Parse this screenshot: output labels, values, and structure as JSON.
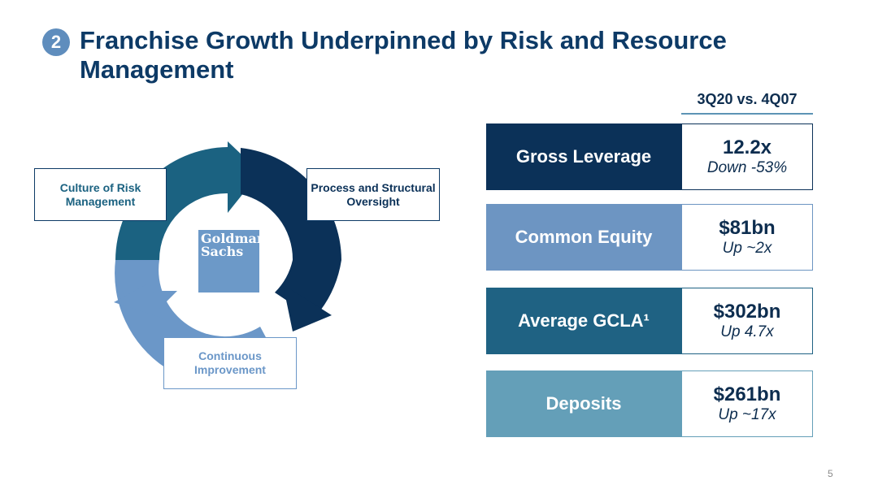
{
  "slide": {
    "badge_number": "2",
    "title": "Franchise Growth Underpinned by Risk and Resource Management",
    "comparison_label": "3Q20 vs. 4Q07",
    "page_number": "5"
  },
  "cycle": {
    "boxes": [
      {
        "label": "Culture of Risk Management"
      },
      {
        "label": "Process and Structural Oversight"
      },
      {
        "label": "Continuous Improvement"
      }
    ],
    "logo_line1": "Goldman",
    "logo_line2": "Sachs",
    "colors": {
      "teal": "#1b6281",
      "navy": "#0b3158",
      "light_blue": "#6b97c8"
    }
  },
  "metrics": [
    {
      "label": "Gross Leverage",
      "value": "12.2x",
      "change": "Down -53%",
      "color": "#0b3158"
    },
    {
      "label": "Common Equity",
      "value": "$81bn",
      "change": "Up ~2x",
      "color": "#6d95c2"
    },
    {
      "label": "Average GCLA¹",
      "value": "$302bn",
      "change": "Up 4.7x",
      "color": "#1f6283"
    },
    {
      "label": "Deposits",
      "value": "$261bn",
      "change": "Up ~17x",
      "color": "#649fb8"
    }
  ]
}
